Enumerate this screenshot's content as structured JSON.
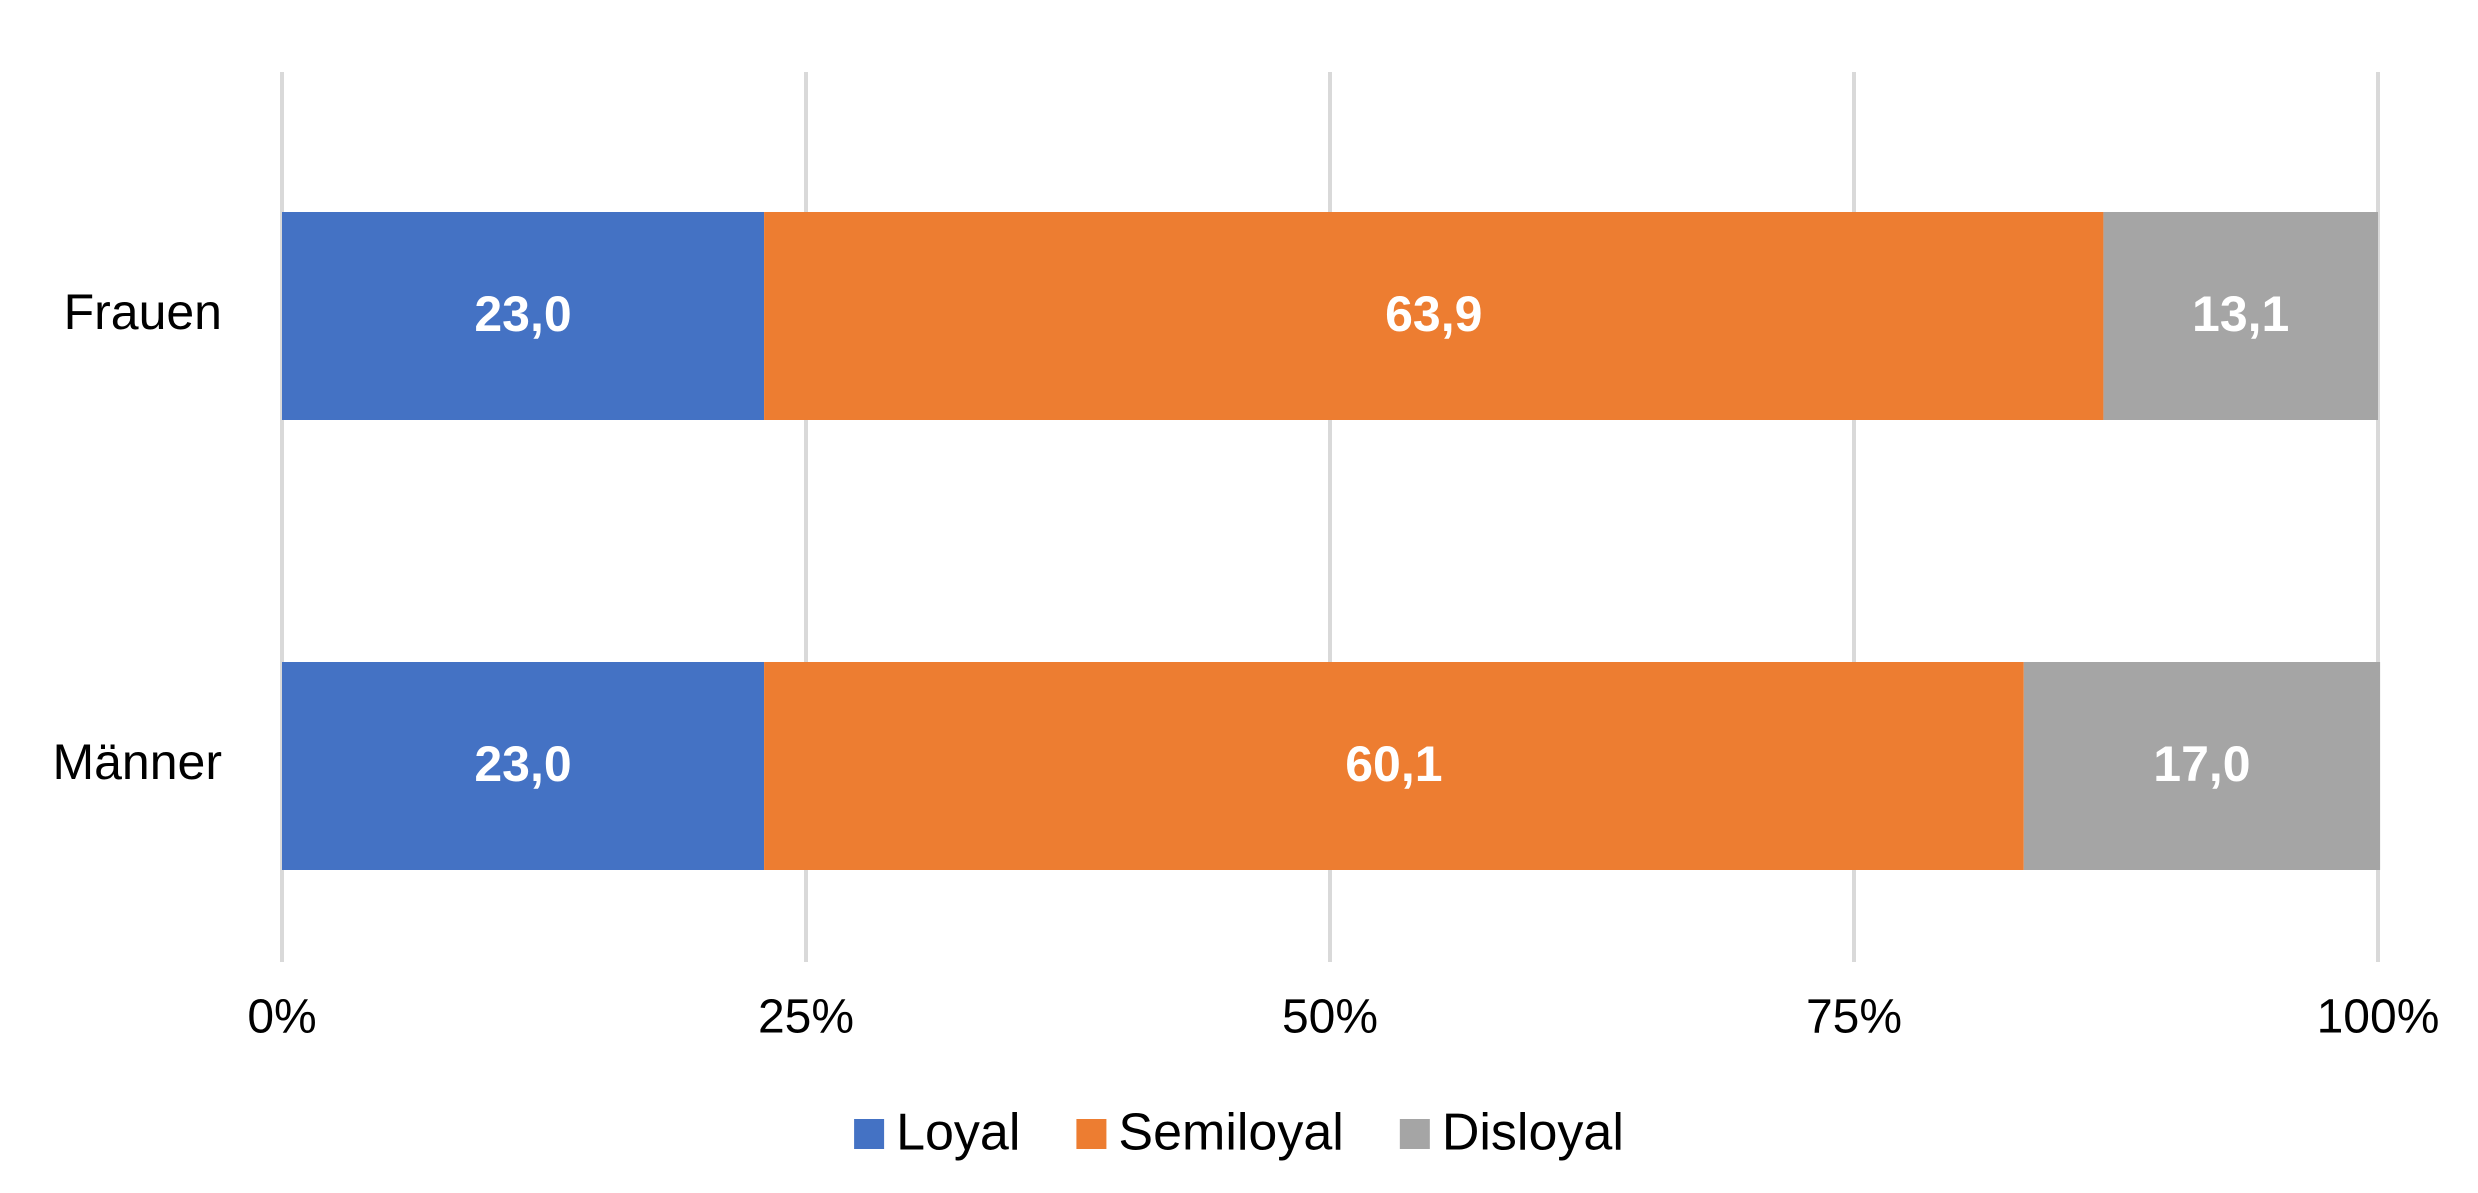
{
  "chart_data": {
    "type": "bar",
    "orientation": "horizontal",
    "stacked": "100%",
    "categories": [
      "Frauen",
      "Männer"
    ],
    "series": [
      {
        "name": "Loyal",
        "color": "#4472C4",
        "values": [
          23.0,
          23.0
        ],
        "labels": [
          "23,0",
          "23,0"
        ]
      },
      {
        "name": "Semiloyal",
        "color": "#ED7D31",
        "values": [
          63.9,
          60.1
        ],
        "labels": [
          "63,9",
          "60,1"
        ]
      },
      {
        "name": "Disloyal",
        "color": "#A5A5A5",
        "values": [
          13.1,
          17.0
        ],
        "labels": [
          "13,1",
          "17,0"
        ]
      }
    ],
    "xlim": [
      0,
      100
    ],
    "xticks": [
      0,
      25,
      50,
      75,
      100
    ],
    "xtick_labels": [
      "0%",
      "25%",
      "50%",
      "75%",
      "100%"
    ],
    "grid": true,
    "legend_position": "bottom"
  }
}
